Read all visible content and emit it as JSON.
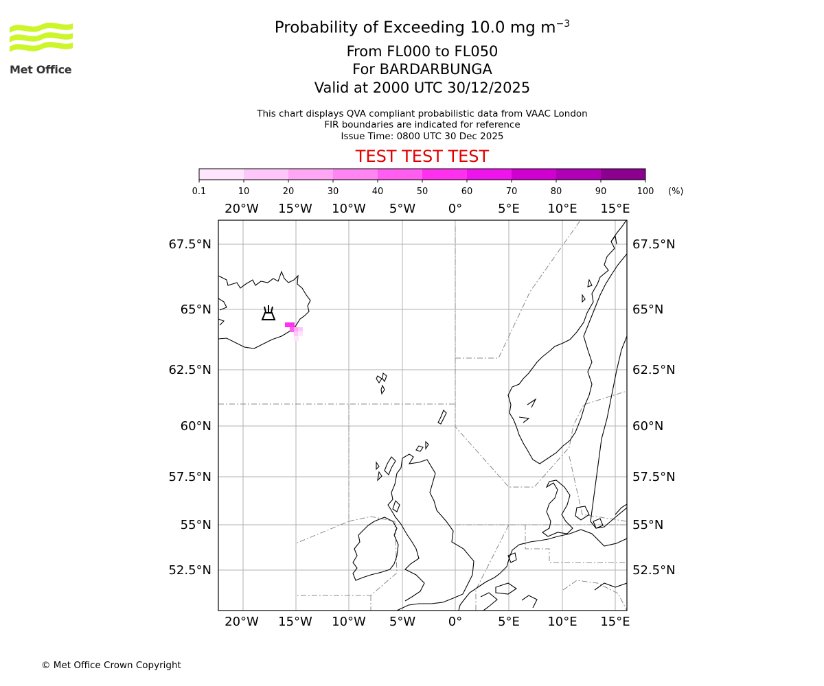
{
  "header": {
    "title": "Probability of Exceeding 10.0 mg m",
    "title_exponent": "−3",
    "flight_levels": "From FL000 to FL050",
    "volcano": "For BARDARBUNGA",
    "valid_time": "Valid at 2000 UTC 30/12/2025"
  },
  "notes": {
    "line1": "This chart displays QVA compliant probabilistic data from VAAC London",
    "line2": "FIR boundaries are indicated for reference",
    "line3": "Issue Time: 0800 UTC 30 Dec 2025"
  },
  "test_banner": "TEST TEST TEST",
  "logo": {
    "text": "Met Office",
    "color": "#ccf52a"
  },
  "colorbar": {
    "ticks": [
      "0.1",
      "10",
      "20",
      "30",
      "40",
      "50",
      "60",
      "70",
      "80",
      "90",
      "100"
    ],
    "unit": "(%)",
    "colors": [
      "#ffe6fc",
      "#ffc6f9",
      "#ffa7f5",
      "#ff85f2",
      "#ff5ef0",
      "#ff30ee",
      "#ee14eb",
      "#d000d0",
      "#b000b5",
      "#8c0090",
      "#6b0068"
    ]
  },
  "map": {
    "lon_labels": [
      "20°W",
      "15°W",
      "10°W",
      "5°W",
      "0°",
      "5°E",
      "10°E",
      "15°E"
    ],
    "lat_labels": [
      "67.5°N",
      "65°N",
      "62.5°N",
      "60°N",
      "57.5°N",
      "55°N",
      "52.5°N"
    ],
    "volcano_symbol": "volcano-icon",
    "ash_cells": [
      {
        "prob_class": 5
      },
      {
        "prob_class": 5
      },
      {
        "prob_class": 4
      },
      {
        "prob_class": 2
      },
      {
        "prob_class": 1
      },
      {
        "prob_class": 1
      },
      {
        "prob_class": 0
      },
      {
        "prob_class": 0
      }
    ]
  },
  "footer": {
    "copyright": "© Met Office Crown Copyright"
  }
}
